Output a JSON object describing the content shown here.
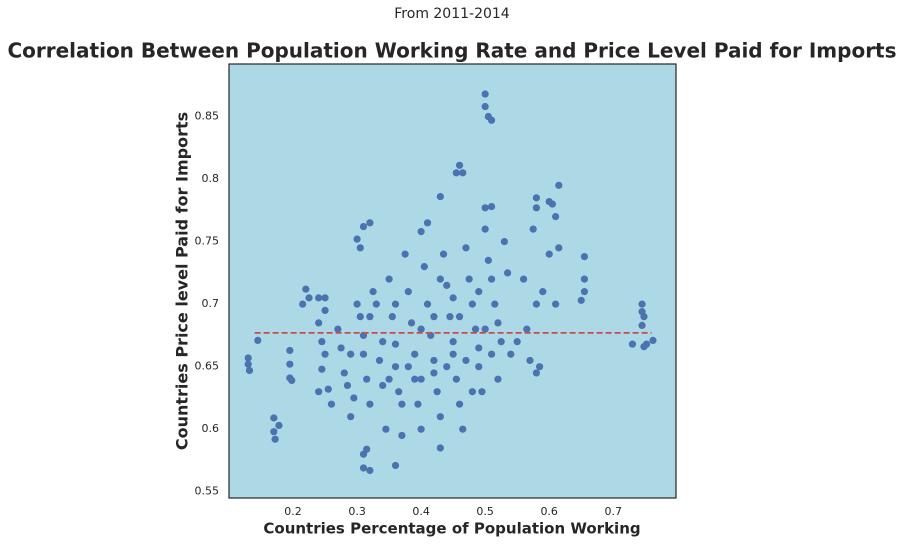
{
  "chart_data": {
    "type": "scatter",
    "subtitle": "From 2011-2014",
    "title": "Correlation Between Population Working Rate and Price Level Paid for Imports",
    "x_label": "Countries Percentage of Population Working",
    "y_label": "Countries Price level Paid for Imports",
    "background": "#add8e6",
    "series": [
      {
        "color": "#4c72b0",
        "x": [
          0.5,
          0.5,
          0.505,
          0.51,
          0.46,
          0.455,
          0.465,
          0.43,
          0.615,
          0.58,
          0.6,
          0.605,
          0.58,
          0.61,
          0.5,
          0.51,
          0.13,
          0.13,
          0.132,
          0.145,
          0.17,
          0.17,
          0.172,
          0.178,
          0.195,
          0.195,
          0.195,
          0.198,
          0.745,
          0.745,
          0.748,
          0.745,
          0.748,
          0.752,
          0.762,
          0.73,
          0.655,
          0.655,
          0.655,
          0.65,
          0.31,
          0.32,
          0.36,
          0.43,
          0.31,
          0.315,
          0.32,
          0.31,
          0.3,
          0.305,
          0.41,
          0.4,
          0.22,
          0.215,
          0.225,
          0.24,
          0.25,
          0.25,
          0.24,
          0.245,
          0.25,
          0.245,
          0.24,
          0.26,
          0.255,
          0.27,
          0.275,
          0.28,
          0.285,
          0.29,
          0.295,
          0.3,
          0.305,
          0.31,
          0.31,
          0.315,
          0.32,
          0.325,
          0.33,
          0.335,
          0.34,
          0.345,
          0.35,
          0.355,
          0.36,
          0.36,
          0.365,
          0.37,
          0.375,
          0.38,
          0.385,
          0.39,
          0.39,
          0.395,
          0.4,
          0.405,
          0.41,
          0.415,
          0.42,
          0.42,
          0.425,
          0.43,
          0.435,
          0.44,
          0.445,
          0.45,
          0.45,
          0.455,
          0.46,
          0.465,
          0.47,
          0.475,
          0.48,
          0.485,
          0.49,
          0.49,
          0.495,
          0.5,
          0.505,
          0.51,
          0.515,
          0.52,
          0.525,
          0.53,
          0.535,
          0.54,
          0.55,
          0.56,
          0.565,
          0.57,
          0.58,
          0.585,
          0.59,
          0.6,
          0.61,
          0.615,
          0.58,
          0.575,
          0.43,
          0.44,
          0.46,
          0.48,
          0.5,
          0.47,
          0.4,
          0.38,
          0.36,
          0.34,
          0.32,
          0.29,
          0.52,
          0.51,
          0.49,
          0.45,
          0.42,
          0.4,
          0.37,
          0.35
        ],
        "values": [
          0.868,
          0.858,
          0.85,
          0.847,
          0.811,
          0.805,
          0.805,
          0.786,
          0.795,
          0.785,
          0.782,
          0.78,
          0.777,
          0.77,
          0.777,
          0.778,
          0.657,
          0.652,
          0.647,
          0.671,
          0.609,
          0.598,
          0.592,
          0.603,
          0.663,
          0.652,
          0.641,
          0.639,
          0.7,
          0.694,
          0.69,
          0.683,
          0.666,
          0.668,
          0.671,
          0.668,
          0.738,
          0.72,
          0.71,
          0.703,
          0.569,
          0.567,
          0.571,
          0.585,
          0.58,
          0.584,
          0.765,
          0.762,
          0.752,
          0.745,
          0.765,
          0.758,
          0.712,
          0.7,
          0.705,
          0.705,
          0.705,
          0.695,
          0.685,
          0.67,
          0.66,
          0.648,
          0.63,
          0.62,
          0.632,
          0.68,
          0.665,
          0.645,
          0.635,
          0.61,
          0.625,
          0.7,
          0.69,
          0.675,
          0.66,
          0.64,
          0.62,
          0.71,
          0.7,
          0.655,
          0.635,
          0.6,
          0.72,
          0.69,
          0.668,
          0.65,
          0.63,
          0.595,
          0.74,
          0.71,
          0.685,
          0.66,
          0.64,
          0.62,
          0.6,
          0.73,
          0.7,
          0.675,
          0.655,
          0.645,
          0.63,
          0.61,
          0.74,
          0.715,
          0.69,
          0.67,
          0.66,
          0.64,
          0.62,
          0.6,
          0.745,
          0.72,
          0.7,
          0.68,
          0.665,
          0.65,
          0.63,
          0.76,
          0.735,
          0.72,
          0.7,
          0.685,
          0.67,
          0.75,
          0.725,
          0.66,
          0.67,
          0.72,
          0.68,
          0.655,
          0.7,
          0.65,
          0.71,
          0.74,
          0.7,
          0.745,
          0.645,
          0.76,
          0.72,
          0.65,
          0.69,
          0.63,
          0.68,
          0.655,
          0.68,
          0.65,
          0.7,
          0.67,
          0.69,
          0.66,
          0.64,
          0.66,
          0.71,
          0.705,
          0.69,
          0.64,
          0.62,
          0.64
        ]
      }
    ],
    "mean_line": {
      "y": 0.677,
      "x": [
        0.14,
        0.76
      ],
      "color": "#c44e52"
    },
    "xlim": [
      0.1,
      0.798
    ],
    "ylim": [
      0.545,
      0.892
    ],
    "xticks": [
      0.2,
      0.3,
      0.4,
      0.5,
      0.6,
      0.7
    ],
    "yticks": [
      0.55,
      0.6,
      0.65,
      0.7,
      0.75,
      0.8,
      0.85
    ]
  }
}
